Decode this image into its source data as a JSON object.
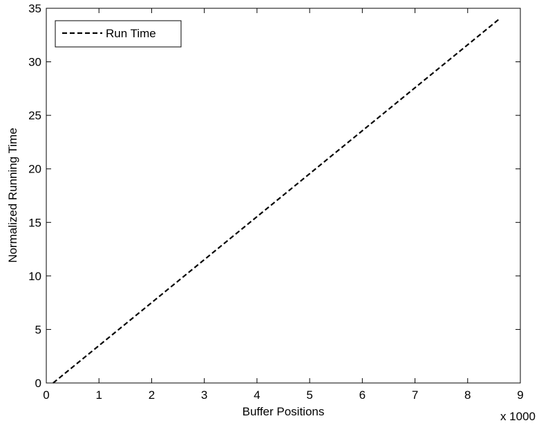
{
  "chart_data": {
    "type": "line",
    "xlabel": "Buffer Positions",
    "ylabel": "Normalized Running Time",
    "x_multiplier": "x 1000",
    "xlim": [
      0,
      9
    ],
    "ylim": [
      0,
      35
    ],
    "xticks": [
      0,
      1,
      2,
      3,
      4,
      5,
      6,
      7,
      8,
      9
    ],
    "yticks": [
      0,
      5,
      10,
      15,
      20,
      25,
      30,
      35
    ],
    "grid": false,
    "legend_position": "top-left",
    "series": [
      {
        "name": "Run Time",
        "line_style": "dashed",
        "color": "#000000",
        "x": [
          0.13,
          8.6
        ],
        "y": [
          0,
          34
        ]
      }
    ]
  }
}
